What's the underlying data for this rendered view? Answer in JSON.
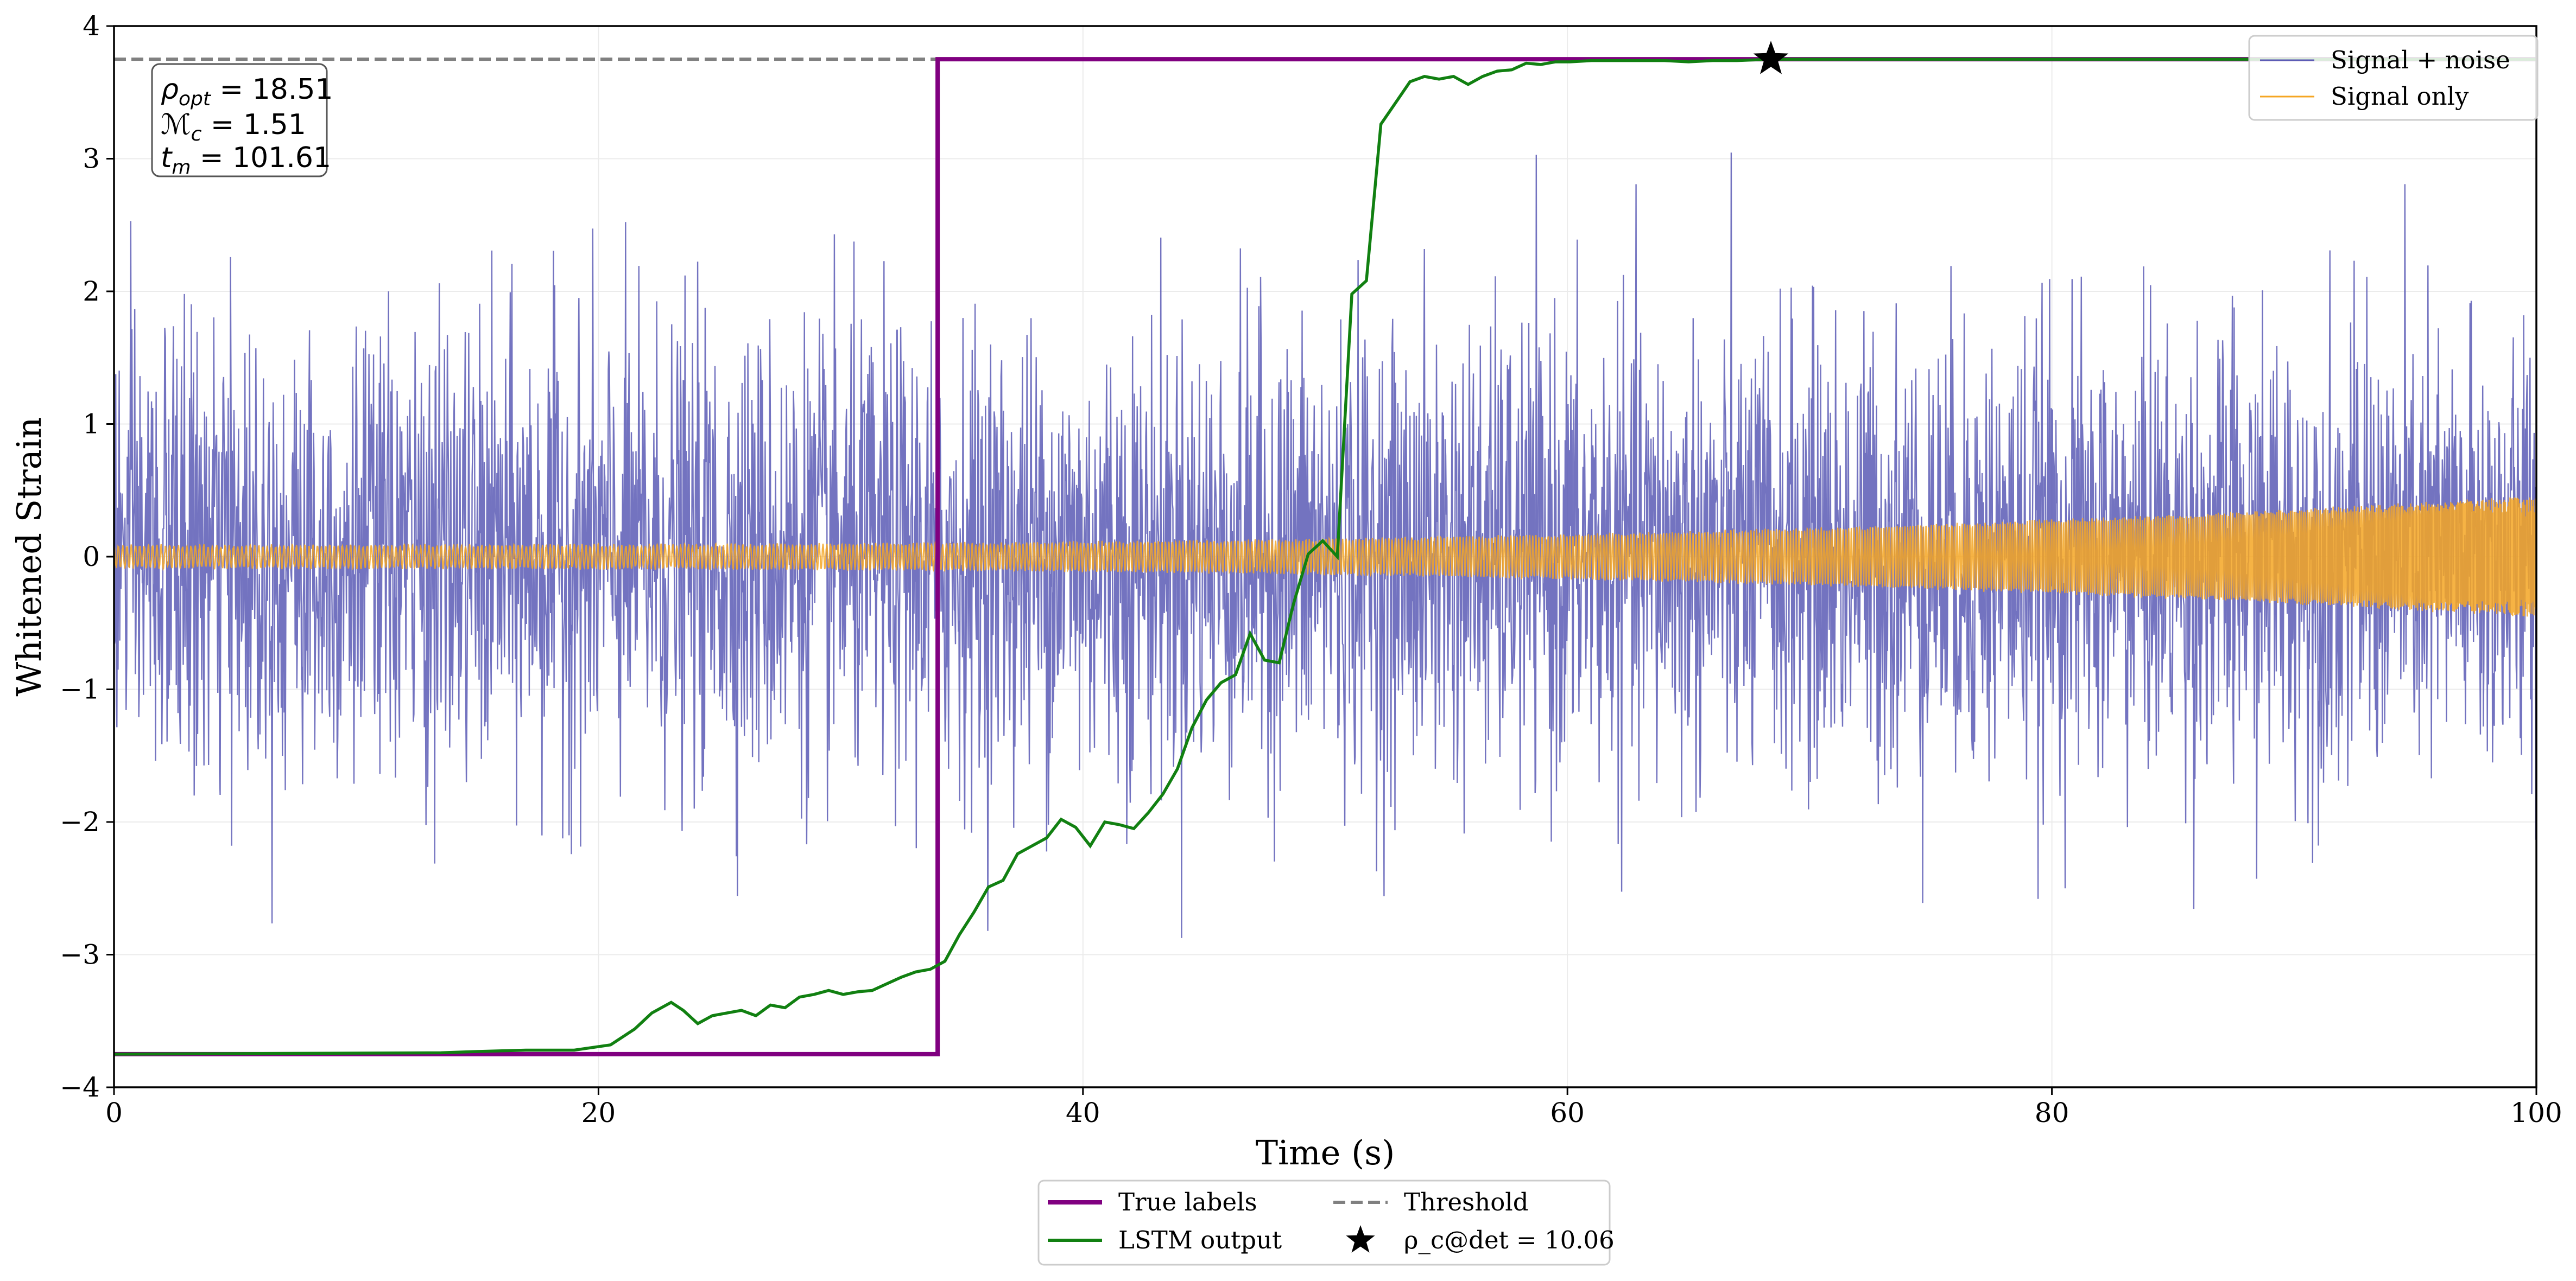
{
  "chart_data": {
    "type": "line",
    "xlabel": "Time (s)",
    "ylabel": "Whitened Strain",
    "xlim": [
      0,
      100
    ],
    "ylim": [
      -4,
      4
    ],
    "x_ticks": [
      0,
      20,
      40,
      60,
      80,
      100
    ],
    "y_ticks": [
      -4,
      -3,
      -2,
      -1,
      0,
      1,
      2,
      3,
      4
    ],
    "x_tick_labels": [
      "0",
      "20",
      "40",
      "60",
      "80",
      "100"
    ],
    "y_tick_labels": [
      "−4",
      "−3",
      "−2",
      "−1",
      "0",
      "1",
      "2",
      "3",
      "4"
    ],
    "grid": true,
    "threshold": 3.75,
    "series": [
      {
        "name": "Signal + noise",
        "color": "#5b5bb5",
        "kind": "noise",
        "amplitude_std": 0.85
      },
      {
        "name": "Signal only",
        "color": "#f5a623",
        "kind": "chirp",
        "amplitude_start": 0.08,
        "amplitude_end": 0.45
      },
      {
        "name": "True labels",
        "color": "#800080",
        "x": [
          0,
          34,
          34,
          100
        ],
        "y": [
          -3.75,
          -3.75,
          3.75,
          3.75
        ]
      },
      {
        "name": "LSTM output",
        "color": "#118011",
        "x": [
          0,
          13.5,
          15,
          17,
          19,
          20.5,
          21.5,
          22.2,
          23,
          23.5,
          24.1,
          24.7,
          25.3,
          25.9,
          26.5,
          27.1,
          27.7,
          28.3,
          28.9,
          29.5,
          30.1,
          30.7,
          31.3,
          31.9,
          32.5,
          33.1,
          33.7,
          34.3,
          34.9,
          35.5,
          36.1,
          36.7,
          37.3,
          37.9,
          38.5,
          39.1,
          39.7,
          40.3,
          40.9,
          41.5,
          42.1,
          42.7,
          43.3,
          43.9,
          44.5,
          45.1,
          45.7,
          46.3,
          46.9,
          47.5,
          48.1,
          48.7,
          49.3,
          49.9,
          50.5,
          51.1,
          51.7,
          52.3,
          52.9,
          53.5,
          54.1,
          54.7,
          55.3,
          55.9,
          56.5,
          57.1,
          57.7,
          58.3,
          58.9,
          59.5,
          60.1,
          61,
          62,
          63,
          64,
          65,
          66,
          67,
          68.4,
          70,
          75,
          80,
          85,
          90,
          95,
          100
        ],
        "y": [
          -3.75,
          -3.74,
          -3.73,
          -3.72,
          -3.72,
          -3.68,
          -3.56,
          -3.44,
          -3.36,
          -3.42,
          -3.52,
          -3.46,
          -3.44,
          -3.42,
          -3.46,
          -3.38,
          -3.4,
          -3.32,
          -3.3,
          -3.27,
          -3.3,
          -3.28,
          -3.27,
          -3.22,
          -3.17,
          -3.13,
          -3.11,
          -3.05,
          -2.85,
          -2.68,
          -2.49,
          -2.44,
          -2.24,
          -2.18,
          -2.12,
          -1.98,
          -2.04,
          -2.18,
          -2.0,
          -2.02,
          -2.05,
          -1.93,
          -1.79,
          -1.6,
          -1.29,
          -1.08,
          -0.95,
          -0.89,
          -0.58,
          -0.78,
          -0.8,
          -0.35,
          0.02,
          0.12,
          0.0,
          1.98,
          2.08,
          3.26,
          3.42,
          3.58,
          3.62,
          3.6,
          3.62,
          3.56,
          3.62,
          3.66,
          3.67,
          3.72,
          3.71,
          3.73,
          3.73,
          3.74,
          3.74,
          3.74,
          3.74,
          3.73,
          3.74,
          3.74,
          3.75,
          3.75,
          3.75,
          3.75,
          3.75,
          3.75,
          3.75,
          3.75
        ]
      },
      {
        "name": "Threshold",
        "color": "#808080",
        "y": 3.75
      }
    ],
    "detection_marker": {
      "x": 68.4,
      "y": 3.75,
      "label": "ρ_c@det = 10.06"
    },
    "legend_upper": [
      "Signal + noise",
      "Signal only"
    ],
    "legend_lower": [
      "True labels",
      "LSTM output",
      "Threshold",
      "ρ_c@det = 10.06"
    ],
    "annotation": {
      "lines": [
        {
          "sym": "ρ",
          "sub": "opt",
          "value": " = 18.51"
        },
        {
          "sym": "ℳ",
          "sub": "c",
          "value": " = 1.51"
        },
        {
          "sym": "t",
          "sub": "m",
          "value": " = 101.61"
        }
      ]
    }
  }
}
